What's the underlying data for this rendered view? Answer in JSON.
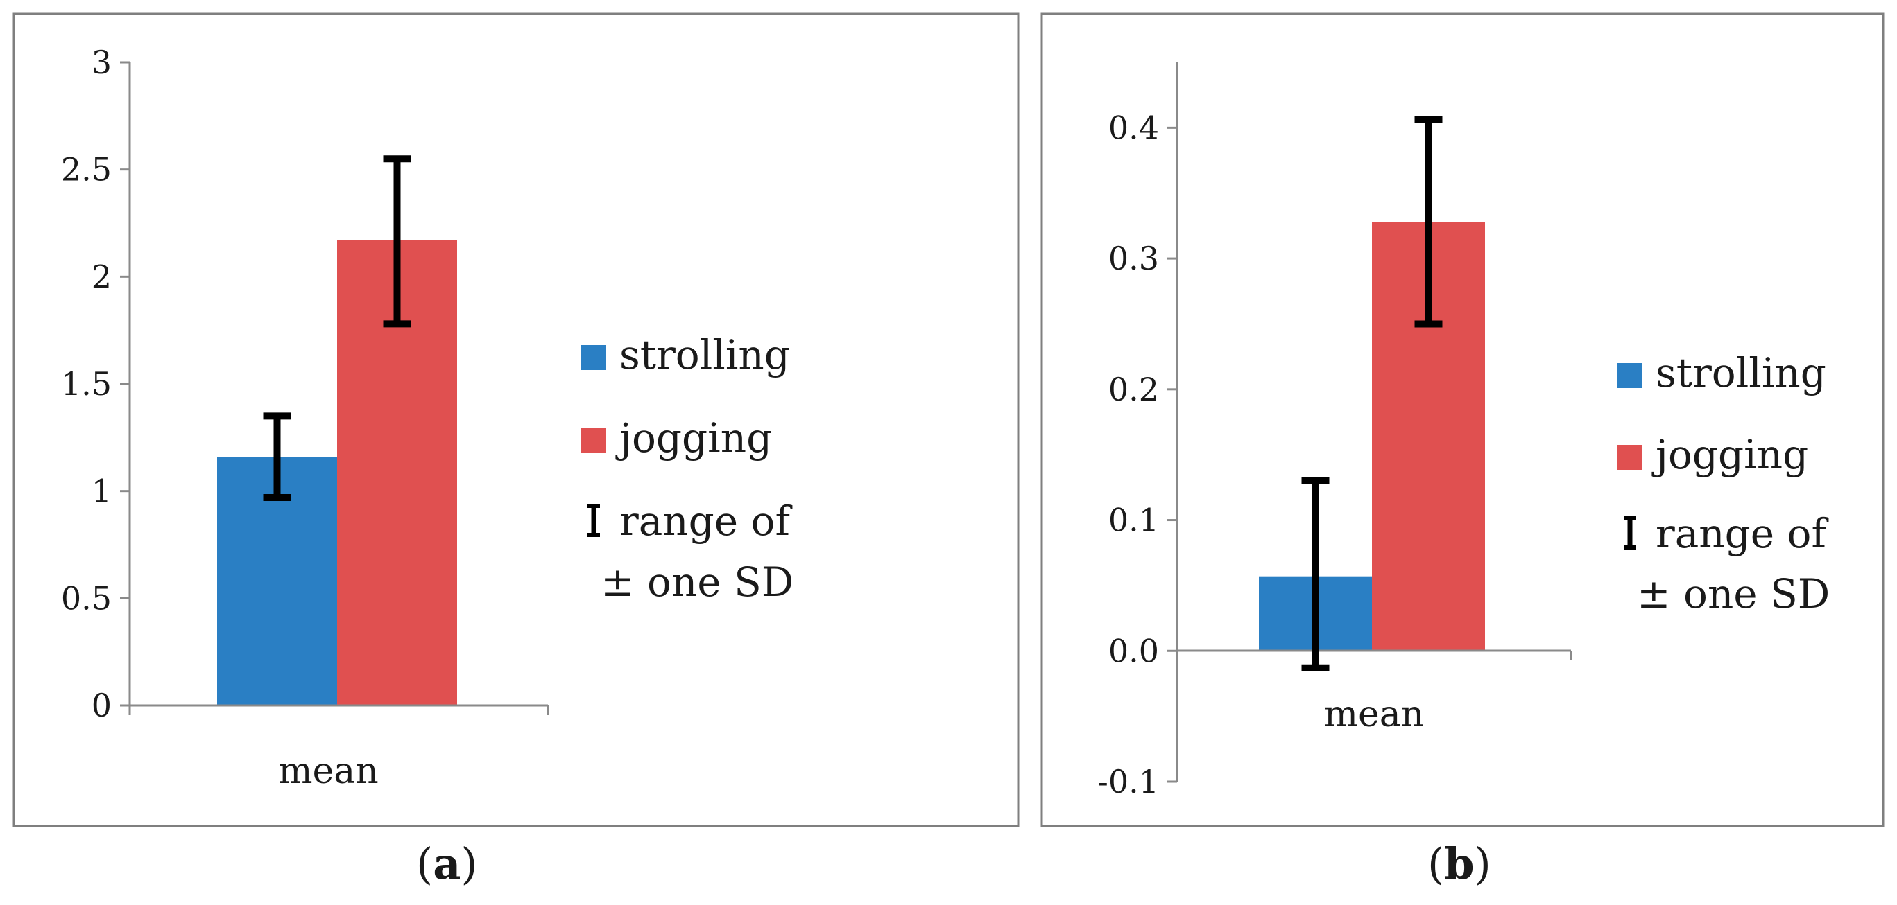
{
  "figure": {
    "captions": [
      {
        "open": "(",
        "label": "a",
        "close": ")"
      },
      {
        "open": "(",
        "label": "b",
        "close": ")"
      }
    ]
  },
  "chart_data": [
    {
      "type": "bar",
      "panel": "a",
      "categories": [
        "mean"
      ],
      "series": [
        {
          "name": "strolling",
          "color": "#2a7fc4",
          "values": [
            1.16
          ],
          "error_low": [
            0.97
          ],
          "error_high": [
            1.35
          ]
        },
        {
          "name": "jogging",
          "color": "#e05050",
          "values": [
            2.17
          ],
          "error_low": [
            1.78
          ],
          "error_high": [
            2.55
          ]
        }
      ],
      "yticks": [
        "0",
        "0.5",
        "1",
        "1.5",
        "2",
        "2.5",
        "3"
      ],
      "ytick_values": [
        0,
        0.5,
        1,
        1.5,
        2,
        2.5,
        3
      ],
      "ylim": [
        0,
        3
      ],
      "xlabel": "",
      "ylabel": "",
      "legend": {
        "placement": "right",
        "errorbar_label_line1": "range of",
        "errorbar_label_line2": "± one SD"
      }
    },
    {
      "type": "bar",
      "panel": "b",
      "categories": [
        "mean"
      ],
      "series": [
        {
          "name": "strolling",
          "color": "#2a7fc4",
          "values": [
            0.057
          ],
          "error_low": [
            -0.013
          ],
          "error_high": [
            0.13
          ]
        },
        {
          "name": "jogging",
          "color": "#e05050",
          "values": [
            0.328
          ],
          "error_low": [
            0.25
          ],
          "error_high": [
            0.406
          ]
        }
      ],
      "yticks": [
        "-0.1",
        "0.0",
        "0.1",
        "0.2",
        "0.3",
        "0.4"
      ],
      "ytick_values": [
        -0.1,
        0,
        0.1,
        0.2,
        0.3,
        0.4
      ],
      "ylim": [
        -0.1,
        0.45
      ],
      "xlabel": "",
      "ylabel": "",
      "legend": {
        "placement": "right",
        "errorbar_label_line1": "range of",
        "errorbar_label_line2": "± one SD"
      }
    }
  ]
}
